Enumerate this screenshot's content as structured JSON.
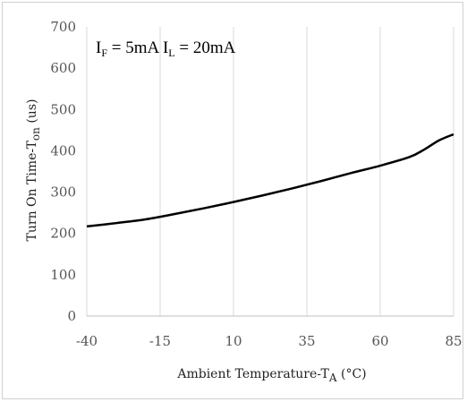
{
  "chart_data": {
    "type": "line",
    "title": "",
    "annotation": {
      "if_main": "I",
      "if_sub": "F",
      "if_rest": " = 5mA ",
      "il_main": "I",
      "il_sub": "L",
      "il_rest": " = 20mA"
    },
    "xlabel_main": "Ambient Temperature-T",
    "xlabel_sub": "A",
    "xlabel_unit": " (°C)",
    "ylabel_main": "Turn On Time-T",
    "ylabel_sub": "on",
    "ylabel_unit": " (us)",
    "xlim": [
      -40,
      85
    ],
    "ylim": [
      0,
      700
    ],
    "x_ticks": [
      -40,
      -15,
      10,
      35,
      60,
      85
    ],
    "y_ticks": [
      0,
      100,
      200,
      300,
      400,
      500,
      600,
      700
    ],
    "grid": "vertical",
    "series": [
      {
        "color": "#000000",
        "x": [
          -40,
          -30,
          -20,
          -10,
          0,
          10,
          20,
          30,
          40,
          50,
          60,
          70,
          75,
          80,
          85
        ],
        "y": [
          217,
          225,
          234,
          247,
          261,
          276,
          292,
          309,
          327,
          346,
          364,
          385,
          403,
          425,
          440
        ]
      }
    ]
  }
}
